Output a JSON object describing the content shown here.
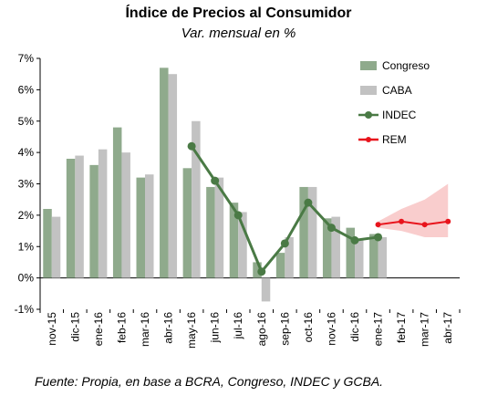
{
  "title": "Índice de Precios al Consumidor",
  "subtitle": "Var. mensual en %",
  "source": "Fuente: Propia, en base a BCRA, Congreso, INDEC y GCBA.",
  "colors": {
    "congreso": "#8faa8c",
    "caba": "#c2c2c2",
    "indec": "#4a7a45",
    "rem": "#e8141c",
    "rem_band": "#f8c4c4",
    "gridline": "#d0d0d0"
  },
  "chart_data": {
    "type": "bar",
    "title": "Índice de Precios al Consumidor",
    "subtitle": "Var. mensual en %",
    "categories": [
      "nov-15",
      "dic-15",
      "ene-16",
      "feb-16",
      "mar-16",
      "abr-16",
      "may-16",
      "jun-16",
      "jul-16",
      "ago-16",
      "sep-16",
      "oct-16",
      "nov-16",
      "dic-16",
      "ene-17",
      "feb-17",
      "mar-17",
      "abr-17"
    ],
    "ylim": [
      -1,
      7
    ],
    "yticks": [
      -1,
      0,
      1,
      2,
      3,
      4,
      5,
      6,
      7
    ],
    "ytick_labels": [
      "-1%",
      "0%",
      "1%",
      "2%",
      "3%",
      "4%",
      "5%",
      "6%",
      "7%"
    ],
    "grid": false,
    "legend_position": "top-right",
    "series": [
      {
        "name": "Congreso",
        "kind": "bar",
        "values": [
          2.2,
          3.8,
          3.6,
          4.8,
          3.2,
          6.7,
          3.5,
          2.9,
          2.4,
          0.5,
          0.8,
          2.9,
          1.9,
          1.6,
          1.4,
          null,
          null,
          null
        ]
      },
      {
        "name": "CABA",
        "kind": "bar",
        "values": [
          1.95,
          3.9,
          4.1,
          4.0,
          3.3,
          6.5,
          5.0,
          3.2,
          2.1,
          -0.75,
          1.3,
          2.9,
          1.95,
          1.2,
          1.3,
          null,
          null,
          null
        ]
      },
      {
        "name": "INDEC",
        "kind": "line",
        "values": [
          null,
          null,
          null,
          null,
          null,
          null,
          4.2,
          3.1,
          2.0,
          0.2,
          1.1,
          2.4,
          1.6,
          1.2,
          1.3,
          null,
          null,
          null
        ]
      },
      {
        "name": "REM",
        "kind": "line",
        "values": [
          null,
          null,
          null,
          null,
          null,
          null,
          null,
          null,
          null,
          null,
          null,
          null,
          null,
          null,
          1.7,
          1.8,
          1.7,
          1.8
        ]
      }
    ],
    "rem_band": {
      "start_index": 14,
      "upper": [
        1.8,
        2.2,
        2.5,
        3.0
      ],
      "lower": [
        1.6,
        1.5,
        1.3,
        1.3
      ]
    }
  }
}
